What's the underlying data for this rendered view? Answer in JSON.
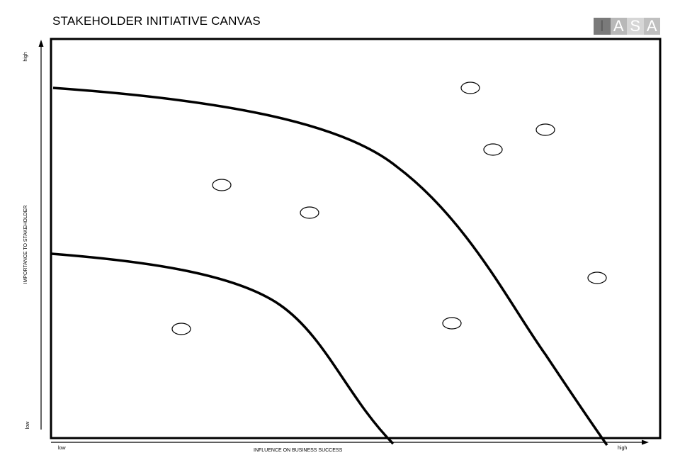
{
  "title": "STAKEHOLDER INITIATIVE CANVAS",
  "logo": {
    "letters": [
      "I",
      "A",
      "S",
      "A"
    ]
  },
  "axes": {
    "x_label": "INFLUENCE ON BUSINESS SUCCESS",
    "x_low": "low",
    "x_high": "high",
    "y_label": "IMPORTANCE TO STAKEHOLDER",
    "y_low": "low",
    "y_high": "high"
  },
  "stakeholders_count_zones": 3
}
